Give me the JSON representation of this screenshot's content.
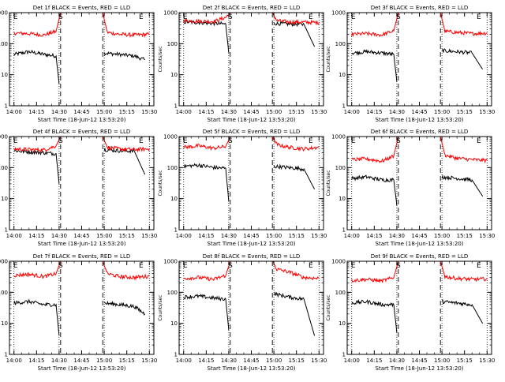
{
  "figure": {
    "ylabel": "Counts/sec",
    "xlabel": "Start Time (18-Jun-12 13:53:20)",
    "x_ticks": [
      "14:00",
      "14:15",
      "14:30",
      "14:45",
      "15:00",
      "15:15",
      "15:30"
    ],
    "y_ticks": [
      "1",
      "10",
      "100",
      "1000"
    ],
    "vertical_markers": [
      "E",
      "S",
      "E"
    ],
    "colors": {
      "events": "#000000",
      "lld": "#ff0000"
    }
  },
  "chart_data": [
    {
      "type": "line",
      "title": "Det 1f BLACK = Events, RED = LLD",
      "xlabel": "Start Time (18-Jun-12 13:53:20)",
      "ylabel": "Counts/sec",
      "yscale": "log",
      "ylim": [
        1,
        1000
      ],
      "series": [
        {
          "name": "Events",
          "color": "#000000",
          "segments": [
            {
              "x": [
                "14:00",
                "14:10",
                "14:20",
                "14:28",
                "14:30"
              ],
              "y": [
                45,
                55,
                45,
                40,
                5
              ]
            },
            {
              "x": [
                "15:00",
                "15:10",
                "15:20",
                "15:27"
              ],
              "y": [
                50,
                45,
                40,
                30
              ]
            }
          ]
        },
        {
          "name": "LLD",
          "color": "#ff0000",
          "segments": [
            {
              "x": [
                "14:00",
                "14:10",
                "14:20",
                "14:28",
                "14:31"
              ],
              "y": [
                220,
                210,
                190,
                250,
                1000
              ]
            },
            {
              "x": [
                "14:59",
                "15:02",
                "15:10",
                "15:20",
                "15:30"
              ],
              "y": [
                1000,
                230,
                200,
                190,
                200
              ]
            }
          ]
        }
      ],
      "markers": [
        {
          "label": "E",
          "x": "13:59"
        },
        {
          "label": "S",
          "x": "14:31"
        },
        {
          "label": "E",
          "x": "15:23"
        }
      ]
    },
    {
      "type": "line",
      "title": "Det 2f BLACK = Events, RED = LLD",
      "xlabel": "Start Time (18-Jun-12 13:53:20)",
      "ylabel": "Counts/sec",
      "yscale": "log",
      "ylim": [
        1,
        1000
      ],
      "series": [
        {
          "name": "Events",
          "color": "#000000",
          "segments": [
            {
              "x": [
                "14:00",
                "14:10",
                "14:20",
                "14:28",
                "14:30"
              ],
              "y": [
                500,
                480,
                450,
                430,
                50
              ]
            },
            {
              "x": [
                "15:00",
                "15:10",
                "15:20",
                "15:27"
              ],
              "y": [
                450,
                430,
                420,
                80
              ]
            }
          ]
        },
        {
          "name": "LLD",
          "color": "#ff0000",
          "segments": [
            {
              "x": [
                "14:00",
                "14:10",
                "14:20",
                "14:28",
                "14:31"
              ],
              "y": [
                550,
                530,
                520,
                700,
                1000
              ]
            },
            {
              "x": [
                "14:59",
                "15:02",
                "15:10",
                "15:20",
                "15:30"
              ],
              "y": [
                1000,
                550,
                500,
                490,
                480
              ]
            }
          ]
        }
      ],
      "markers": [
        {
          "label": "E",
          "x": "13:59"
        },
        {
          "label": "S",
          "x": "14:31"
        },
        {
          "label": "E",
          "x": "15:23"
        }
      ]
    },
    {
      "type": "line",
      "title": "Det 3f BLACK = Events, RED = LLD",
      "xlabel": "Start Time (18-Jun-12 13:53:20)",
      "ylabel": "Counts/sec",
      "yscale": "log",
      "ylim": [
        1,
        1000
      ],
      "series": [
        {
          "name": "Events",
          "color": "#000000",
          "segments": [
            {
              "x": [
                "14:00",
                "14:10",
                "14:20",
                "14:28",
                "14:30"
              ],
              "y": [
                50,
                55,
                50,
                45,
                6
              ]
            },
            {
              "x": [
                "15:00",
                "15:10",
                "15:20",
                "15:27"
              ],
              "y": [
                60,
                55,
                50,
                15
              ]
            }
          ]
        },
        {
          "name": "LLD",
          "color": "#ff0000",
          "segments": [
            {
              "x": [
                "14:00",
                "14:10",
                "14:20",
                "14:28",
                "14:31"
              ],
              "y": [
                200,
                210,
                190,
                260,
                1000
              ]
            },
            {
              "x": [
                "14:59",
                "15:02",
                "15:10",
                "15:20",
                "15:30"
              ],
              "y": [
                1000,
                250,
                230,
                210,
                220
              ]
            }
          ]
        }
      ],
      "markers": [
        {
          "label": "E",
          "x": "13:59"
        },
        {
          "label": "S",
          "x": "14:31"
        },
        {
          "label": "E",
          "x": "15:23"
        }
      ]
    },
    {
      "type": "line",
      "title": "Det 4f BLACK = Events, RED = LLD",
      "xlabel": "Start Time (18-Jun-12 13:53:20)",
      "ylabel": "Counts/sec",
      "yscale": "log",
      "ylim": [
        1,
        1000
      ],
      "series": [
        {
          "name": "Events",
          "color": "#000000",
          "segments": [
            {
              "x": [
                "14:00",
                "14:10",
                "14:20",
                "14:28",
                "14:30"
              ],
              "y": [
                350,
                320,
                300,
                280,
                30
              ]
            },
            {
              "x": [
                "15:00",
                "15:10",
                "15:20",
                "15:27"
              ],
              "y": [
                380,
                350,
                340,
                60
              ]
            }
          ]
        },
        {
          "name": "LLD",
          "color": "#ff0000",
          "segments": [
            {
              "x": [
                "14:00",
                "14:10",
                "14:20",
                "14:28",
                "14:31"
              ],
              "y": [
                400,
                380,
                370,
                500,
                1000
              ]
            },
            {
              "x": [
                "14:59",
                "15:02",
                "15:10",
                "15:20",
                "15:30"
              ],
              "y": [
                1000,
                450,
                400,
                380,
                400
              ]
            }
          ]
        }
      ],
      "markers": [
        {
          "label": "E",
          "x": "13:59"
        },
        {
          "label": "S",
          "x": "14:31"
        },
        {
          "label": "E",
          "x": "15:23"
        }
      ]
    },
    {
      "type": "line",
      "title": "Det 5f BLACK = Events, RED = LLD",
      "xlabel": "Start Time (18-Jun-12 13:53:20)",
      "ylabel": "Counts/sec",
      "yscale": "log",
      "ylim": [
        1,
        1000
      ],
      "series": [
        {
          "name": "Events",
          "color": "#000000",
          "segments": [
            {
              "x": [
                "14:00",
                "14:10",
                "14:20",
                "14:28",
                "14:30"
              ],
              "y": [
                110,
                120,
                100,
                95,
                8
              ]
            },
            {
              "x": [
                "15:00",
                "15:10",
                "15:20",
                "15:27"
              ],
              "y": [
                110,
                100,
                90,
                20
              ]
            }
          ]
        },
        {
          "name": "LLD",
          "color": "#ff0000",
          "segments": [
            {
              "x": [
                "14:00",
                "14:10",
                "14:20",
                "14:28",
                "14:31"
              ],
              "y": [
                450,
                500,
                420,
                480,
                1000
              ]
            },
            {
              "x": [
                "14:59",
                "15:02",
                "15:10",
                "15:20",
                "15:30"
              ],
              "y": [
                1000,
                550,
                450,
                400,
                450
              ]
            }
          ]
        }
      ],
      "markers": [
        {
          "label": "E",
          "x": "13:59"
        },
        {
          "label": "S",
          "x": "14:31"
        },
        {
          "label": "E",
          "x": "15:23"
        }
      ]
    },
    {
      "type": "line",
      "title": "Det 6f BLACK = Events, RED = LLD",
      "xlabel": "Start Time (18-Jun-12 13:53:20)",
      "ylabel": "Counts/sec",
      "yscale": "log",
      "ylim": [
        1,
        1000
      ],
      "series": [
        {
          "name": "Events",
          "color": "#000000",
          "segments": [
            {
              "x": [
                "14:00",
                "14:10",
                "14:20",
                "14:28",
                "14:30"
              ],
              "y": [
                45,
                50,
                40,
                40,
                6
              ]
            },
            {
              "x": [
                "15:00",
                "15:10",
                "15:20",
                "15:27"
              ],
              "y": [
                50,
                45,
                40,
                12
              ]
            }
          ]
        },
        {
          "name": "LLD",
          "color": "#ff0000",
          "segments": [
            {
              "x": [
                "14:00",
                "14:10",
                "14:20",
                "14:28",
                "14:31"
              ],
              "y": [
                180,
                190,
                160,
                240,
                1000
              ]
            },
            {
              "x": [
                "14:59",
                "15:02",
                "15:10",
                "15:20",
                "15:30"
              ],
              "y": [
                1000,
                250,
                200,
                180,
                170
              ]
            }
          ]
        }
      ],
      "markers": [
        {
          "label": "E",
          "x": "13:59"
        },
        {
          "label": "S",
          "x": "14:31"
        },
        {
          "label": "E",
          "x": "15:23"
        }
      ]
    },
    {
      "type": "line",
      "title": "Det 7f BLACK = Events, RED = LLD",
      "xlabel": "Start Time (18-Jun-12 13:53:20)",
      "ylabel": "Counts/sec",
      "yscale": "log",
      "ylim": [
        1,
        1000
      ],
      "series": [
        {
          "name": "Events",
          "color": "#000000",
          "segments": [
            {
              "x": [
                "14:00",
                "14:10",
                "14:20",
                "14:28",
                "14:30"
              ],
              "y": [
                45,
                50,
                40,
                40,
                4
              ]
            },
            {
              "x": [
                "15:00",
                "15:10",
                "15:20",
                "15:27"
              ],
              "y": [
                45,
                40,
                35,
                20
              ]
            }
          ]
        },
        {
          "name": "LLD",
          "color": "#ff0000",
          "segments": [
            {
              "x": [
                "14:00",
                "14:10",
                "14:20",
                "14:28",
                "14:31"
              ],
              "y": [
                350,
                380,
                320,
                400,
                1000
              ]
            },
            {
              "x": [
                "14:59",
                "15:02",
                "15:10",
                "15:20",
                "15:30"
              ],
              "y": [
                1000,
                400,
                320,
                300,
                330
              ]
            }
          ]
        }
      ],
      "markers": [
        {
          "label": "E",
          "x": "13:59"
        },
        {
          "label": "S",
          "x": "14:31"
        },
        {
          "label": "E",
          "x": "15:23"
        }
      ]
    },
    {
      "type": "line",
      "title": "Det 8f BLACK = Events, RED = LLD",
      "xlabel": "Start Time (18-Jun-12 13:53:20)",
      "ylabel": "Counts/sec",
      "yscale": "log",
      "ylim": [
        1,
        1000
      ],
      "series": [
        {
          "name": "Events",
          "color": "#000000",
          "segments": [
            {
              "x": [
                "14:00",
                "14:10",
                "14:20",
                "14:28",
                "14:30"
              ],
              "y": [
                70,
                75,
                65,
                60,
                6
              ]
            },
            {
              "x": [
                "15:00",
                "15:10",
                "15:20",
                "15:27"
              ],
              "y": [
                90,
                70,
                60,
                4
              ]
            }
          ]
        },
        {
          "name": "LLD",
          "color": "#ff0000",
          "segments": [
            {
              "x": [
                "14:00",
                "14:10",
                "14:20",
                "14:28",
                "14:31"
              ],
              "y": [
                280,
                300,
                260,
                350,
                1000
              ]
            },
            {
              "x": [
                "14:59",
                "15:02",
                "15:10",
                "15:20",
                "15:30"
              ],
              "y": [
                1000,
                550,
                450,
                300,
                280
              ]
            }
          ]
        }
      ],
      "markers": [
        {
          "label": "E",
          "x": "13:59"
        },
        {
          "label": "S",
          "x": "14:31"
        },
        {
          "label": "E",
          "x": "15:23"
        }
      ]
    },
    {
      "type": "line",
      "title": "Det 9f BLACK = Events, RED = LLD",
      "xlabel": "Start Time (18-Jun-12 13:53:20)",
      "ylabel": "Counts/sec",
      "yscale": "log",
      "ylim": [
        1,
        1000
      ],
      "series": [
        {
          "name": "Events",
          "color": "#000000",
          "segments": [
            {
              "x": [
                "14:00",
                "14:10",
                "14:20",
                "14:28",
                "14:30"
              ],
              "y": [
                45,
                50,
                40,
                40,
                5
              ]
            },
            {
              "x": [
                "15:00",
                "15:10",
                "15:20",
                "15:27"
              ],
              "y": [
                50,
                45,
                40,
                10
              ]
            }
          ]
        },
        {
          "name": "LLD",
          "color": "#ff0000",
          "segments": [
            {
              "x": [
                "14:00",
                "14:10",
                "14:20",
                "14:28",
                "14:31"
              ],
              "y": [
                240,
                260,
                230,
                300,
                1000
              ]
            },
            {
              "x": [
                "14:59",
                "15:02",
                "15:10",
                "15:20",
                "15:30"
              ],
              "y": [
                1000,
                320,
                280,
                260,
                270
              ]
            }
          ]
        }
      ],
      "markers": [
        {
          "label": "E",
          "x": "13:59"
        },
        {
          "label": "S",
          "x": "14:31"
        },
        {
          "label": "E",
          "x": "15:23"
        }
      ]
    }
  ]
}
